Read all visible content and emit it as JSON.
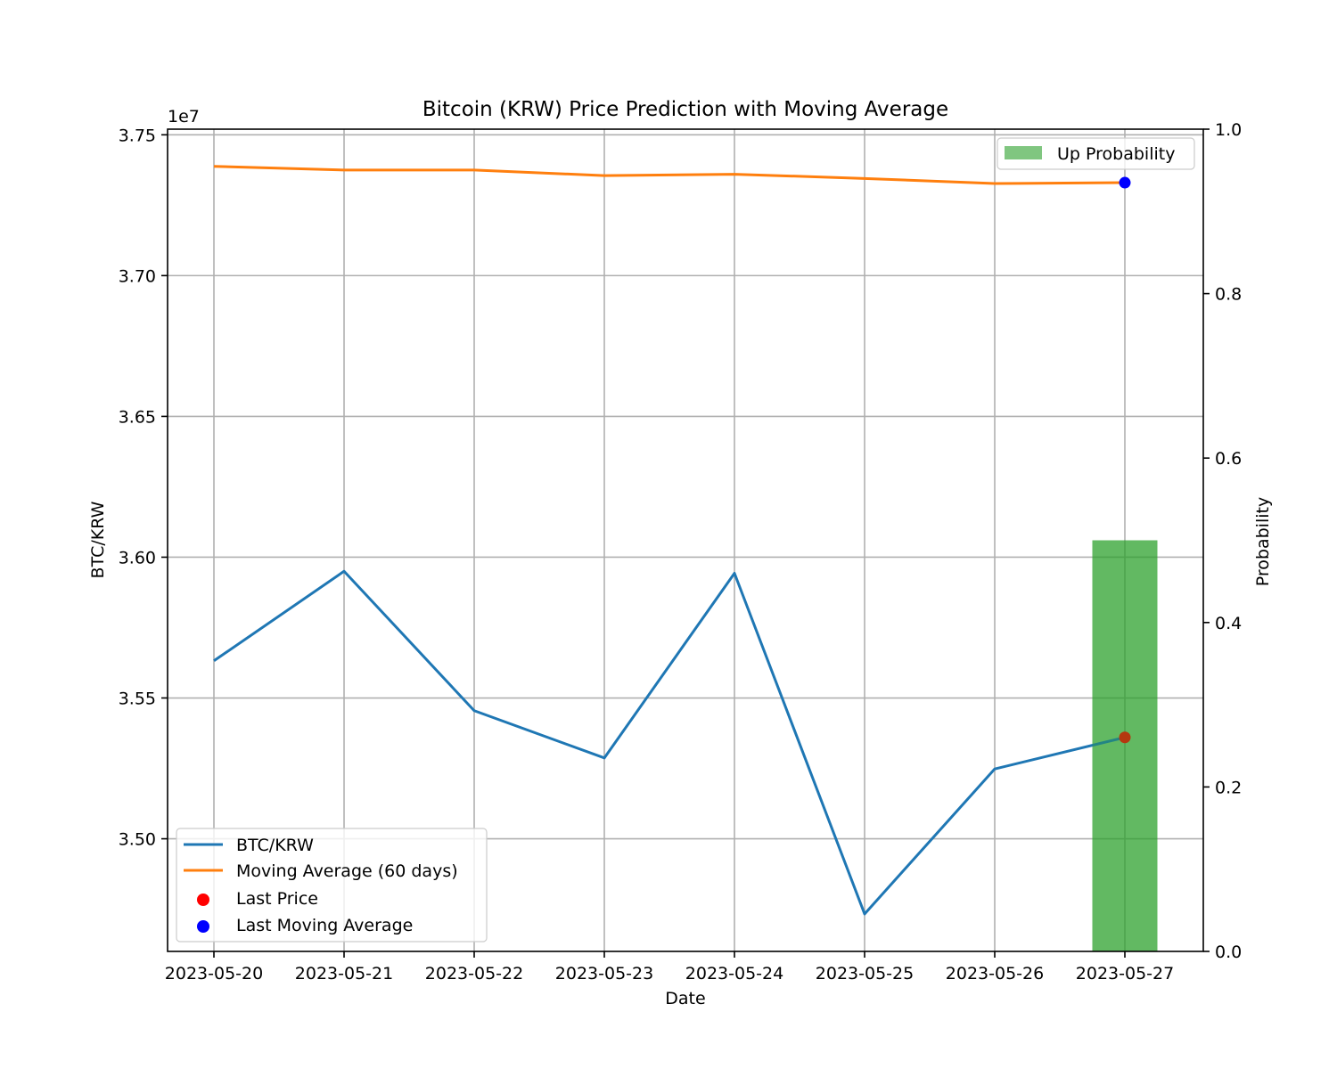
{
  "chart_data": {
    "type": "line",
    "title": "Bitcoin (KRW) Price Prediction with Moving Average",
    "xlabel": "Date",
    "ylabel": "BTC/KRW",
    "y2label": "Probability",
    "offset_label": "1e7",
    "categories": [
      "2023-05-20",
      "2023-05-21",
      "2023-05-22",
      "2023-05-23",
      "2023-05-24",
      "2023-05-25",
      "2023-05-26",
      "2023-05-27"
    ],
    "ylim": [
      3.46,
      3.752
    ],
    "y_ticks": [
      "3.50",
      "3.55",
      "3.60",
      "3.65",
      "3.70",
      "3.75"
    ],
    "y2lim": [
      0,
      1
    ],
    "y2_ticks": [
      "0.0",
      "0.2",
      "0.4",
      "0.6",
      "0.8",
      "1.0"
    ],
    "grid": true,
    "series": [
      {
        "name": "BTC/KRW",
        "color": "#1f77b4",
        "values": [
          3.5632,
          3.595,
          3.5455,
          3.5287,
          3.5943,
          3.4733,
          3.5248,
          3.536
        ]
      },
      {
        "name": "Moving Average (60 days)",
        "color": "#ff7f0e",
        "values": [
          3.7388,
          3.7375,
          3.7375,
          3.7355,
          3.736,
          3.7345,
          3.7327,
          3.733
        ]
      }
    ],
    "points": [
      {
        "name": "Last Price",
        "color": "#ff0000",
        "x": "2023-05-27",
        "value": 3.536
      },
      {
        "name": "Last Moving Average",
        "color": "#0000ff",
        "x": "2023-05-27",
        "value": 3.733
      }
    ],
    "bars": [
      {
        "name": "Up Probability",
        "color": "#2ca02c",
        "x": "2023-05-27",
        "value": 0.5
      }
    ],
    "legend_main": {
      "placement": "lower-left",
      "entries": [
        "BTC/KRW",
        "Moving Average (60 days)",
        "Last Price",
        "Last Moving Average"
      ]
    },
    "legend_secondary": {
      "placement": "upper-right",
      "entries": [
        "Up Probability"
      ]
    }
  }
}
